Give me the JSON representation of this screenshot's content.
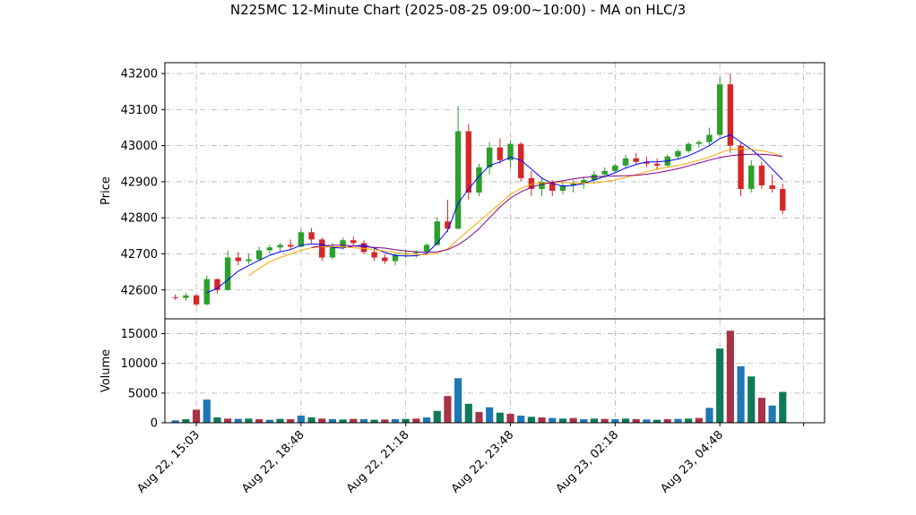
{
  "chart_data": {
    "type": "candlestick",
    "title": "N225MC 12-Minute Chart (2025-08-25 09:00~10:00) - MA on HLC/3",
    "price_panel": {
      "ylabel": "Price",
      "ylim": [
        42520,
        43230
      ],
      "yticks": [
        42600,
        42700,
        42800,
        42900,
        43000,
        43100,
        43200
      ],
      "grid": true
    },
    "volume_panel": {
      "ylabel": "Volume",
      "ylim": [
        0,
        17500
      ],
      "yticks": [
        0,
        5000,
        10000,
        15000
      ],
      "ytick_labels": [
        "0",
        "5000",
        "10000",
        "15000"
      ],
      "grid": true
    },
    "x_domain": [
      -1,
      62
    ],
    "xticks": [
      {
        "i": 2,
        "label": "Aug 22, 15:03"
      },
      {
        "i": 12,
        "label": "Aug 22, 18:48"
      },
      {
        "i": 22,
        "label": "Aug 22, 21:18"
      },
      {
        "i": 32,
        "label": "Aug 22, 23:48"
      },
      {
        "i": 42,
        "label": "Aug 23, 02:18"
      },
      {
        "i": 52,
        "label": "Aug 23, 04:48"
      },
      {
        "i": 60,
        "label": ""
      }
    ],
    "colors": {
      "up": "#2ca02c",
      "down": "#d62728",
      "ma_short": "#0000ff",
      "ma_mid": "#ffa500",
      "ma_long": "#800080",
      "vol_a": "#1f77b4",
      "vol_b": "#0f7a5a",
      "vol_c": "#a83246"
    },
    "candles": [
      [
        42580,
        42588,
        42572,
        42578
      ],
      [
        42578,
        42592,
        42570,
        42585
      ],
      [
        42585,
        42590,
        42555,
        42560
      ],
      [
        42560,
        42640,
        42558,
        42630
      ],
      [
        42630,
        42632,
        42590,
        42600
      ],
      [
        42600,
        42710,
        42598,
        42690
      ],
      [
        42690,
        42705,
        42668,
        42680
      ],
      [
        42680,
        42700,
        42672,
        42685
      ],
      [
        42685,
        42720,
        42680,
        42710
      ],
      [
        42710,
        42725,
        42700,
        42718
      ],
      [
        42718,
        42730,
        42705,
        42725
      ],
      [
        42725,
        42740,
        42712,
        42720
      ],
      [
        42720,
        42770,
        42718,
        42760
      ],
      [
        42760,
        42772,
        42730,
        42740
      ],
      [
        42740,
        42745,
        42680,
        42690
      ],
      [
        42690,
        42730,
        42685,
        42720
      ],
      [
        42720,
        42745,
        42712,
        42738
      ],
      [
        42738,
        42748,
        42722,
        42730
      ],
      [
        42730,
        42738,
        42700,
        42705
      ],
      [
        42705,
        42715,
        42680,
        42690
      ],
      [
        42690,
        42700,
        42672,
        42680
      ],
      [
        42680,
        42705,
        42668,
        42698
      ],
      [
        42698,
        42712,
        42690,
        42702
      ],
      [
        42702,
        42710,
        42690,
        42706
      ],
      [
        42706,
        42730,
        42700,
        42725
      ],
      [
        42725,
        42800,
        42722,
        42790
      ],
      [
        42790,
        42850,
        42760,
        42770
      ],
      [
        42770,
        43110,
        42768,
        43040
      ],
      [
        43040,
        43060,
        42850,
        42870
      ],
      [
        42870,
        42950,
        42860,
        42940
      ],
      [
        42940,
        43010,
        42920,
        42995
      ],
      [
        42995,
        43020,
        42950,
        42960
      ],
      [
        42960,
        43015,
        42940,
        43005
      ],
      [
        43005,
        43010,
        42900,
        42910
      ],
      [
        42910,
        42930,
        42860,
        42880
      ],
      [
        42880,
        42910,
        42860,
        42900
      ],
      [
        42900,
        42905,
        42860,
        42875
      ],
      [
        42875,
        42900,
        42865,
        42890
      ],
      [
        42890,
        42905,
        42870,
        42895
      ],
      [
        42895,
        42915,
        42880,
        42905
      ],
      [
        42905,
        42930,
        42895,
        42920
      ],
      [
        42920,
        42940,
        42910,
        42930
      ],
      [
        42930,
        42950,
        42925,
        42945
      ],
      [
        42945,
        42975,
        42940,
        42965
      ],
      [
        42965,
        42980,
        42948,
        42955
      ],
      [
        42955,
        42970,
        42940,
        42950
      ],
      [
        42950,
        42965,
        42932,
        42945
      ],
      [
        42945,
        42975,
        42940,
        42970
      ],
      [
        42970,
        42990,
        42962,
        42985
      ],
      [
        42985,
        43010,
        42980,
        43005
      ],
      [
        43005,
        43015,
        42995,
        43010
      ],
      [
        43010,
        43050,
        43000,
        43030
      ],
      [
        43030,
        43190,
        43025,
        43170
      ],
      [
        43170,
        43200,
        42980,
        43000
      ],
      [
        43000,
        43010,
        42860,
        42880
      ],
      [
        42880,
        42960,
        42870,
        42945
      ],
      [
        42945,
        42955,
        42880,
        42890
      ],
      [
        42890,
        42920,
        42870,
        42880
      ],
      [
        42880,
        42895,
        42810,
        42820
      ]
    ],
    "volumes": [
      400,
      600,
      2200,
      3900,
      900,
      700,
      650,
      700,
      600,
      500,
      650,
      600,
      1200,
      900,
      700,
      600,
      550,
      650,
      600,
      500,
      550,
      600,
      650,
      700,
      900,
      2000,
      4500,
      7500,
      3200,
      1800,
      2600,
      1700,
      1500,
      1200,
      1000,
      900,
      800,
      700,
      800,
      600,
      700,
      650,
      600,
      700,
      600,
      550,
      500,
      600,
      650,
      700,
      800,
      2500,
      12500,
      15500,
      9500,
      7800,
      4200,
      2900,
      5200
    ],
    "ma_short": [
      null,
      null,
      null,
      42592,
      42605,
      42628,
      42652,
      42668,
      42682,
      42696,
      42706,
      42712,
      42724,
      42728,
      42726,
      42718,
      42716,
      42722,
      42724,
      42716,
      42704,
      42696,
      42694,
      42695,
      42701,
      42730,
      42765,
      42840,
      42880,
      42915,
      42945,
      42955,
      42968,
      42960,
      42935,
      42910,
      42895,
      42888,
      42890,
      42895,
      42905,
      42915,
      42925,
      42938,
      42948,
      42955,
      42955,
      42958,
      42963,
      42972,
      42985,
      43000,
      43020,
      43030,
      43010,
      42990,
      42965,
      42935,
      42905
    ],
    "ma_mid": [
      null,
      null,
      null,
      null,
      null,
      null,
      null,
      42640,
      42660,
      42678,
      42690,
      42700,
      42710,
      42717,
      42720,
      42720,
      42719,
      42717,
      42715,
      42712,
      42708,
      42704,
      42700,
      42698,
      42698,
      42702,
      42714,
      42740,
      42765,
      42790,
      42815,
      42840,
      42865,
      42882,
      42893,
      42898,
      42898,
      42898,
      42897,
      42896,
      42897,
      42900,
      42905,
      42912,
      42920,
      42928,
      42935,
      42940,
      42945,
      42952,
      42960,
      42968,
      42980,
      42990,
      42992,
      42990,
      42986,
      42980,
      42970
    ],
    "ma_long": [
      null,
      null,
      null,
      null,
      null,
      null,
      null,
      null,
      null,
      null,
      null,
      null,
      null,
      42718,
      42722,
      42724,
      42724,
      42722,
      42720,
      42718,
      42716,
      42712,
      42708,
      42706,
      42704,
      42706,
      42712,
      42725,
      42745,
      42770,
      42800,
      42830,
      42855,
      42872,
      42885,
      42893,
      42898,
      42903,
      42908,
      42912,
      42914,
      42915,
      42916,
      42917,
      42918,
      42921,
      42925,
      42930,
      42936,
      42944,
      42952,
      42960,
      42967,
      42972,
      42975,
      42976,
      42976,
      42974,
      42970
    ]
  }
}
